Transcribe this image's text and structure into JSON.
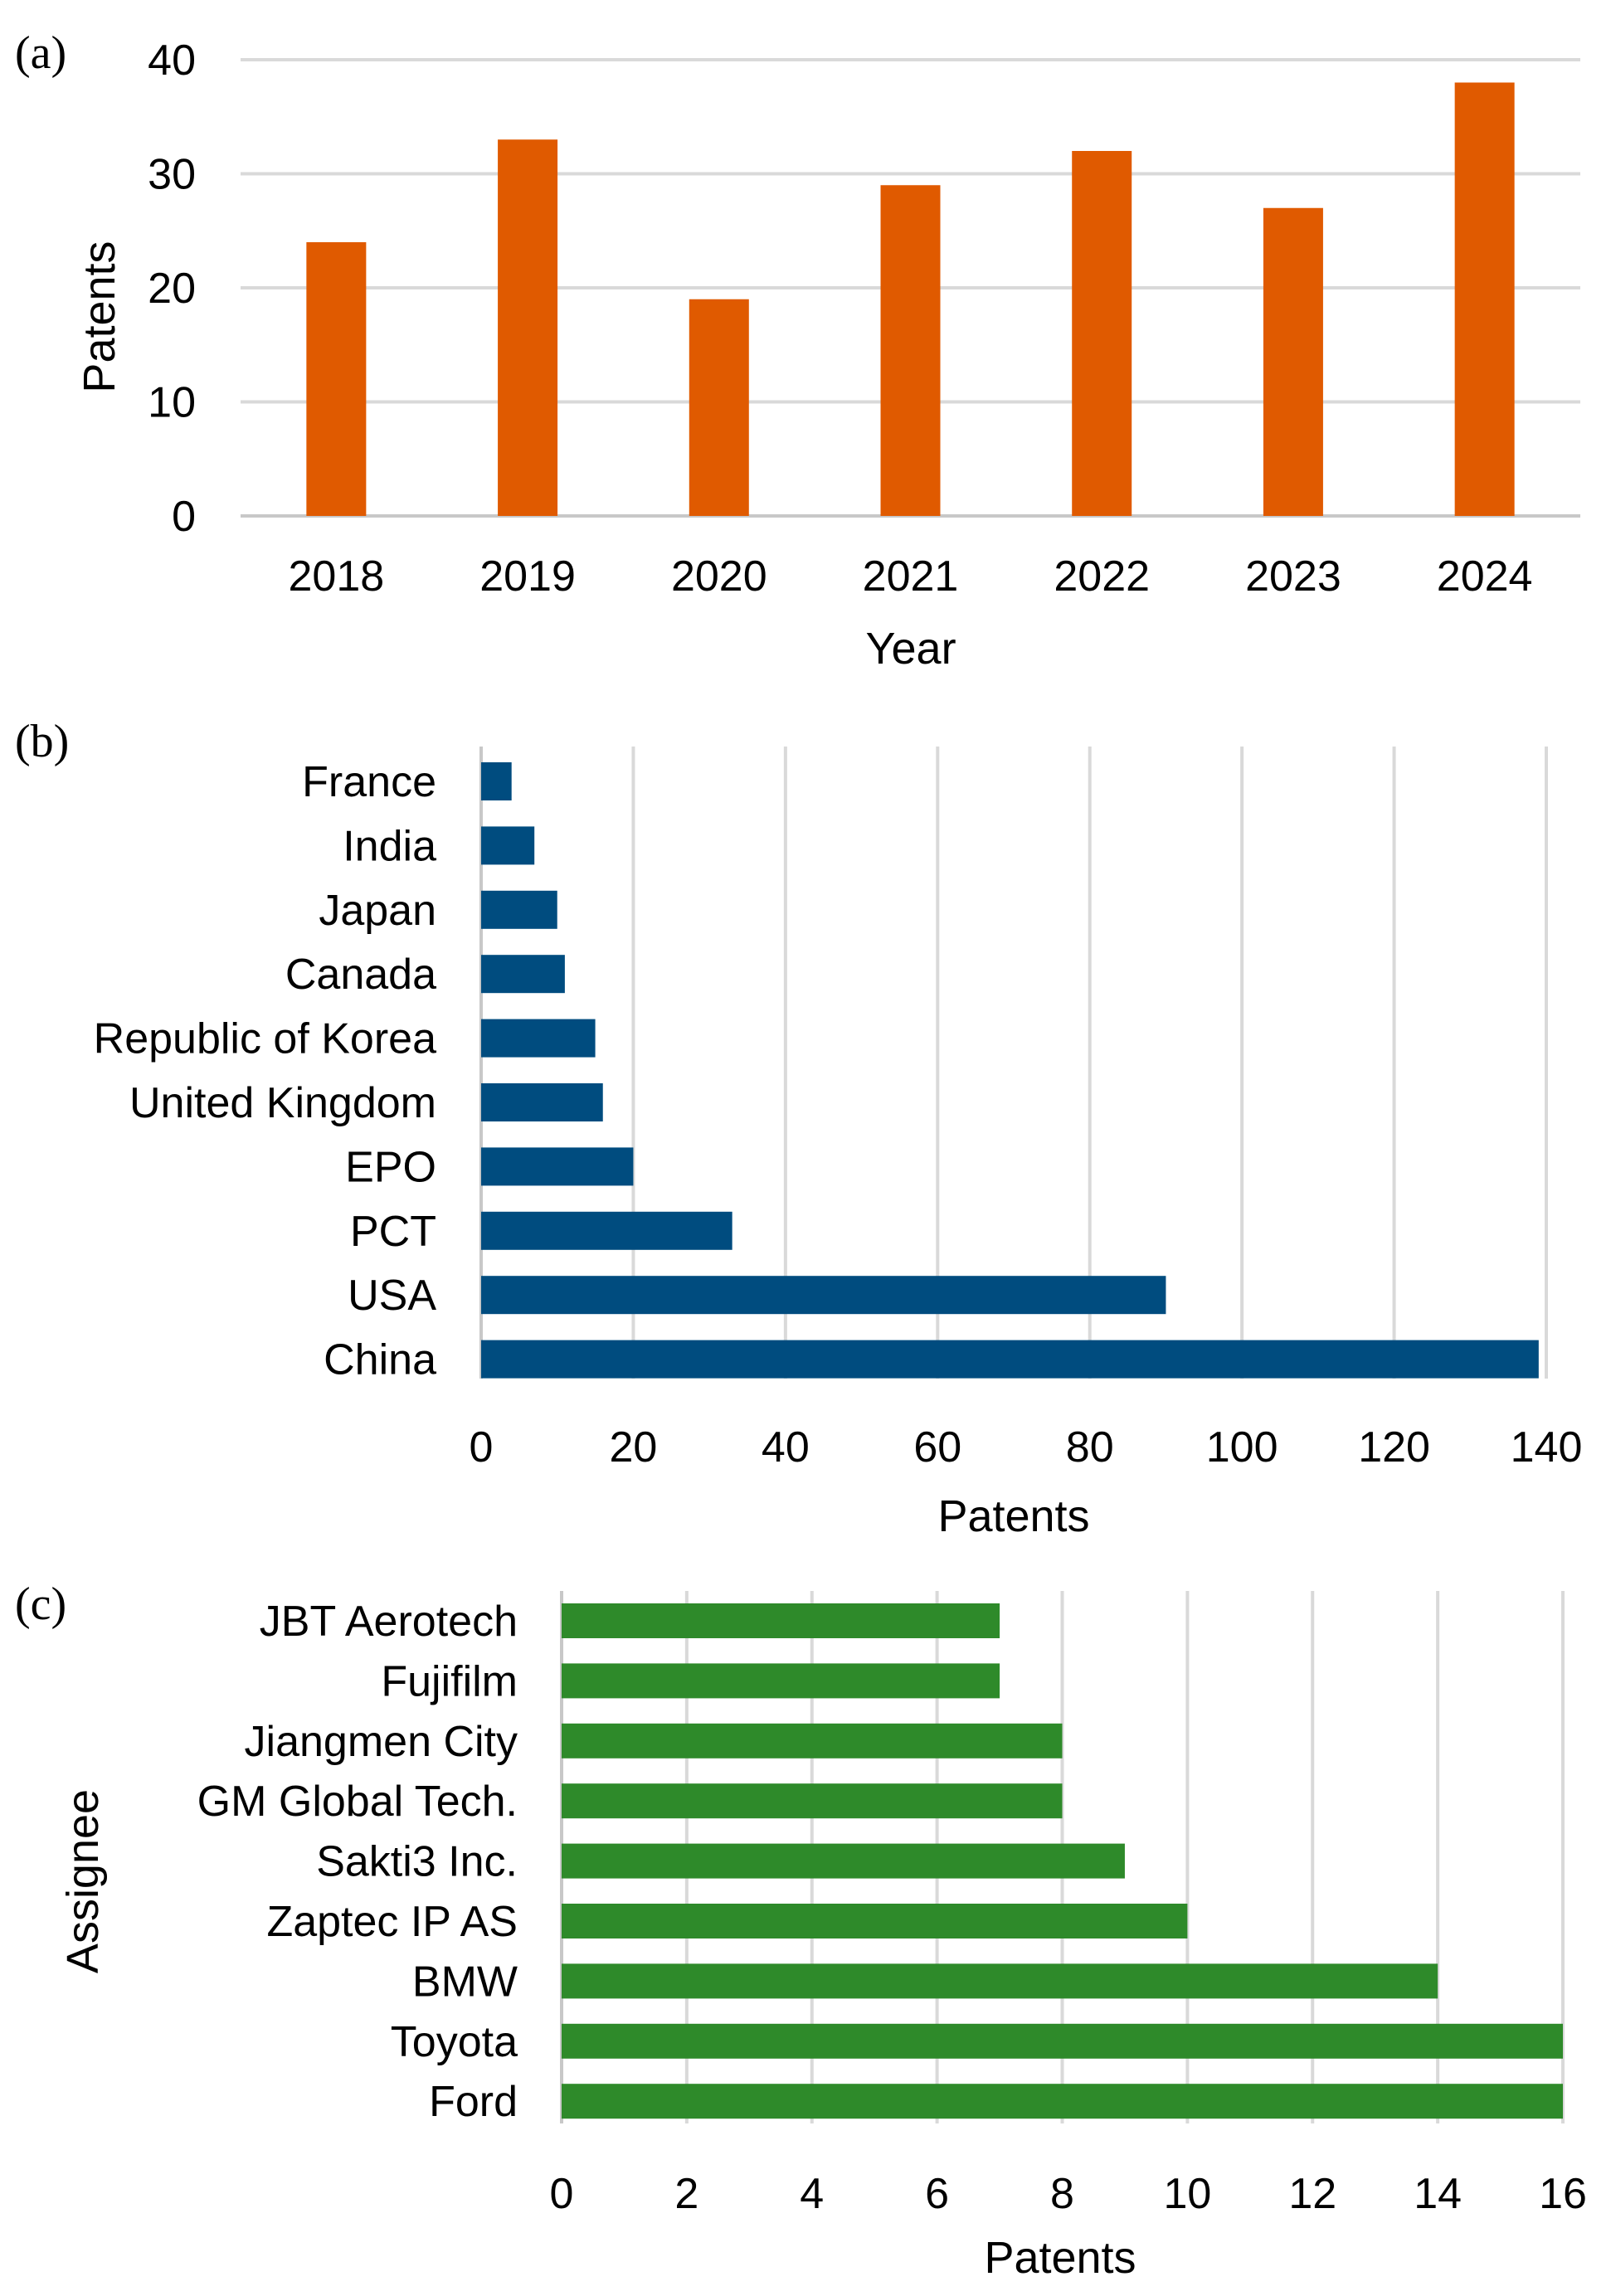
{
  "chart_data": [
    {
      "type": "bar",
      "orientation": "vertical",
      "panel_label": "(a)",
      "categories": [
        "2018",
        "2019",
        "2020",
        "2021",
        "2022",
        "2023",
        "2024"
      ],
      "values": [
        24,
        33,
        19,
        29,
        32,
        27,
        38
      ],
      "xlabel": "Year",
      "ylabel": "Patents",
      "ylim": [
        0,
        40
      ],
      "yticks": [
        0,
        10,
        20,
        30,
        40
      ],
      "grid": "horizontal",
      "color": "#e05a00"
    },
    {
      "type": "bar",
      "orientation": "horizontal",
      "panel_label": "(b)",
      "categories": [
        "France",
        "India",
        "Japan",
        "Canada",
        "Republic of Korea",
        "United Kingdom",
        "EPO",
        "PCT",
        "USA",
        "China"
      ],
      "values": [
        4,
        7,
        10,
        11,
        15,
        16,
        20,
        33,
        90,
        139
      ],
      "xlabel": "Patents",
      "ylabel": "",
      "xlim": [
        0,
        140
      ],
      "xticks": [
        0,
        20,
        40,
        60,
        80,
        100,
        120,
        140
      ],
      "grid": "vertical",
      "color": "#004c7f"
    },
    {
      "type": "bar",
      "orientation": "horizontal",
      "panel_label": "(c)",
      "categories": [
        "JBT Aerotech",
        "Fujifilm",
        "Jiangmen City",
        "GM Global Tech.",
        "Sakti3 Inc.",
        "Zaptec IP AS",
        "BMW",
        "Toyota",
        "Ford"
      ],
      "values": [
        7,
        7,
        8,
        8,
        9,
        10,
        14,
        16,
        16
      ],
      "xlabel": "Patents",
      "ylabel": "Assignee",
      "xlim": [
        0,
        16
      ],
      "xticks": [
        0,
        2,
        4,
        6,
        8,
        10,
        12,
        14,
        16
      ],
      "grid": "vertical",
      "color": "#2e8a2a"
    }
  ]
}
